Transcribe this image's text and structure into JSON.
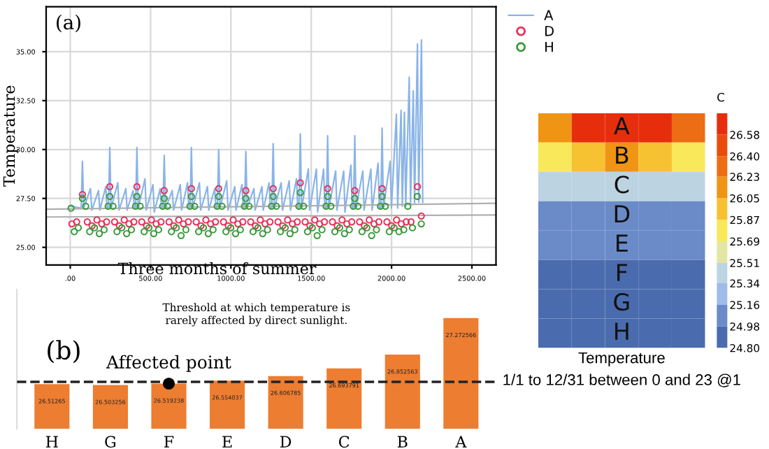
{
  "chart_data": [
    {
      "type": "line",
      "ylabel": "Temperature",
      "xlabel": "Three months of summer",
      "annotations": [
        "(a)"
      ],
      "xlim": [
        -150,
        2650
      ],
      "ylim": [
        24.1,
        37.3
      ],
      "xticks": [
        {
          "value": 0,
          "label": ".00"
        },
        {
          "value": 500,
          "label": "500.00"
        },
        {
          "value": 1000,
          "label": "1000.00"
        },
        {
          "value": 1500,
          "label": "1500.00"
        },
        {
          "value": 2000,
          "label": "2000.00"
        },
        {
          "value": 2500,
          "label": "2500.00"
        }
      ],
      "yticks": [
        {
          "value": 25,
          "label": "25.00"
        },
        {
          "value": 27.5,
          "label": "27.50"
        },
        {
          "value": 30,
          "label": "30.00"
        },
        {
          "value": 32.5,
          "label": "32.50"
        },
        {
          "value": 35,
          "label": "35.00"
        }
      ],
      "grid": true,
      "legend": "top right",
      "series": [
        {
          "name": "A",
          "type": "line",
          "color": "#8ab4e8",
          "x": [
            0,
            68,
            76,
            84,
            126,
            134,
            176,
            184,
            221,
            229,
            238,
            246,
            254,
            296,
            304,
            346,
            354,
            391,
            399,
            407,
            415,
            423,
            465,
            473,
            515,
            523,
            560,
            568,
            577,
            585,
            593,
            635,
            643,
            685,
            693,
            730,
            738,
            746,
            754,
            762,
            804,
            812,
            854,
            862,
            899,
            907,
            916,
            924,
            932,
            974,
            982,
            1024,
            1032,
            1069,
            1077,
            1085,
            1093,
            1101,
            1143,
            1151,
            1193,
            1201,
            1238,
            1246,
            1255,
            1263,
            1271,
            1313,
            1321,
            1363,
            1371,
            1408,
            1416,
            1424,
            1432,
            1440,
            1482,
            1490,
            1532,
            1540,
            1577,
            1585,
            1594,
            1602,
            1610,
            1652,
            1660,
            1702,
            1710,
            1747,
            1755,
            1763,
            1771,
            1779,
            1821,
            1829,
            1871,
            1879,
            1916,
            1924,
            1933,
            1941,
            1949,
            1991,
            1999,
            2030,
            2038,
            2059,
            2067,
            2080,
            2088,
            2110,
            2118,
            2135,
            2143,
            2161,
            2169,
            2186,
            2194
          ],
          "values": [
            27.1,
            27.0,
            29.4,
            27.0,
            28.0,
            26.9,
            27.9,
            26.9,
            28.1,
            27.0,
            27.0,
            30.1,
            27.0,
            28.3,
            26.9,
            28.0,
            26.9,
            27.9,
            27.0,
            27.0,
            30.1,
            27.0,
            28.5,
            26.9,
            28.2,
            26.8,
            28.0,
            27.0,
            27.0,
            29.7,
            27.0,
            27.9,
            26.9,
            28.2,
            26.9,
            28.3,
            27.0,
            27.0,
            30.1,
            27.0,
            28.3,
            26.9,
            28.1,
            26.9,
            28.0,
            27.0,
            27.0,
            30.0,
            27.0,
            28.4,
            26.9,
            28.1,
            26.9,
            28.2,
            27.0,
            27.0,
            29.9,
            27.0,
            28.0,
            26.9,
            28.1,
            26.9,
            28.3,
            27.0,
            27.0,
            30.3,
            27.0,
            28.3,
            26.9,
            28.4,
            26.9,
            28.5,
            27.0,
            27.0,
            30.8,
            27.0,
            29.0,
            26.9,
            29.0,
            26.8,
            29.0,
            27.0,
            27.0,
            30.7,
            27.0,
            28.9,
            26.9,
            28.9,
            26.8,
            29.2,
            27.0,
            27.0,
            30.7,
            27.0,
            28.9,
            26.9,
            29.0,
            26.9,
            29.3,
            27.0,
            27.0,
            31.1,
            27.0,
            29.4,
            27.0,
            31.8,
            27.0,
            32.0,
            27.1,
            31.9,
            27.1,
            33.7,
            27.2,
            33.0,
            27.2,
            35.4,
            27.3,
            35.6,
            27.3
          ]
        },
        {
          "name": "D",
          "type": "scatter",
          "color": "#e8305a",
          "marker": "circle",
          "x": [
            10,
            40,
            76,
            106,
            136,
            166,
            196,
            226,
            246,
            276,
            306,
            336,
            366,
            396,
            415,
            445,
            475,
            505,
            535,
            565,
            585,
            615,
            645,
            675,
            705,
            735,
            754,
            784,
            814,
            844,
            874,
            904,
            924,
            954,
            984,
            1014,
            1044,
            1074,
            1093,
            1123,
            1153,
            1183,
            1213,
            1243,
            1263,
            1293,
            1323,
            1353,
            1383,
            1413,
            1432,
            1462,
            1492,
            1522,
            1552,
            1582,
            1602,
            1632,
            1662,
            1692,
            1722,
            1752,
            1771,
            1801,
            1831,
            1861,
            1891,
            1921,
            1941,
            1971,
            2001,
            2031,
            2061,
            2091,
            2121,
            2161,
            2185
          ],
          "values": [
            26.2,
            26.3,
            27.7,
            26.3,
            26.1,
            26.4,
            26.2,
            26.3,
            28.1,
            26.3,
            26.1,
            26.4,
            26.2,
            26.3,
            28.1,
            26.3,
            26.1,
            26.4,
            26.2,
            26.3,
            27.9,
            26.3,
            26.1,
            26.4,
            26.2,
            26.3,
            28.0,
            26.3,
            26.1,
            26.4,
            26.2,
            26.3,
            28.0,
            26.3,
            26.1,
            26.4,
            26.2,
            26.3,
            27.9,
            26.3,
            26.1,
            26.4,
            26.2,
            26.3,
            28.0,
            26.3,
            26.1,
            26.4,
            26.2,
            26.3,
            28.3,
            26.3,
            26.1,
            26.4,
            26.2,
            26.3,
            28.0,
            26.3,
            26.1,
            26.4,
            26.2,
            26.3,
            27.9,
            26.3,
            26.1,
            26.4,
            26.2,
            26.3,
            28.0,
            26.3,
            26.1,
            26.4,
            26.2,
            26.3,
            26.3,
            28.1,
            26.6
          ]
        },
        {
          "name": "H",
          "type": "scatter",
          "color": "#3a9a3a",
          "marker": "circle",
          "x": [
            5,
            25,
            50,
            76,
            96,
            121,
            151,
            181,
            211,
            236,
            246,
            266,
            291,
            321,
            351,
            381,
            406,
            415,
            435,
            460,
            490,
            520,
            550,
            575,
            585,
            605,
            630,
            660,
            690,
            720,
            745,
            754,
            774,
            799,
            829,
            859,
            889,
            914,
            924,
            944,
            969,
            999,
            1029,
            1059,
            1084,
            1093,
            1113,
            1138,
            1168,
            1198,
            1228,
            1253,
            1263,
            1283,
            1308,
            1338,
            1368,
            1398,
            1423,
            1432,
            1452,
            1477,
            1507,
            1537,
            1567,
            1592,
            1602,
            1622,
            1647,
            1677,
            1707,
            1737,
            1762,
            1771,
            1791,
            1816,
            1846,
            1876,
            1906,
            1931,
            1941,
            1961,
            1986,
            2016,
            2046,
            2076,
            2101,
            2130,
            2160,
            2185
          ],
          "values": [
            27.0,
            25.8,
            26.0,
            27.5,
            27.1,
            25.8,
            26.0,
            25.7,
            25.9,
            27.1,
            27.6,
            27.1,
            25.8,
            26.0,
            25.7,
            25.9,
            27.1,
            27.6,
            27.1,
            25.8,
            26.0,
            25.7,
            25.9,
            27.1,
            27.5,
            27.1,
            25.8,
            26.0,
            25.6,
            25.9,
            27.1,
            27.6,
            27.1,
            25.8,
            26.0,
            25.7,
            25.9,
            27.1,
            27.6,
            27.1,
            25.8,
            26.0,
            25.7,
            25.9,
            27.1,
            27.5,
            27.1,
            25.8,
            26.0,
            25.7,
            25.9,
            27.1,
            27.6,
            27.1,
            25.8,
            26.0,
            25.7,
            25.9,
            27.1,
            27.8,
            27.1,
            25.8,
            26.0,
            25.6,
            25.9,
            27.1,
            27.6,
            27.1,
            25.8,
            26.0,
            25.7,
            25.9,
            27.1,
            27.5,
            27.1,
            25.8,
            26.0,
            25.6,
            25.9,
            27.1,
            27.6,
            27.1,
            25.8,
            26.0,
            25.8,
            25.9,
            27.1,
            26.0,
            27.6,
            26.2
          ]
        },
        {
          "type": "line",
          "color": "#b0b0b0",
          "x": [
            -150,
            2650
          ],
          "values": [
            26.95,
            27.25
          ]
        },
        {
          "type": "line",
          "color": "#b0b0b0",
          "x": [
            -150,
            2650
          ],
          "values": [
            26.55,
            26.65
          ]
        }
      ]
    },
    {
      "type": "bar",
      "categories": [
        "H",
        "G",
        "F",
        "E",
        "D",
        "C",
        "B",
        "A"
      ],
      "values": [
        26.51265,
        26.503256,
        26.519238,
        26.554037,
        26.606785,
        26.693791,
        26.852563,
        27.272566
      ],
      "color": "#ed7d31",
      "value_labels": [
        "26.51265",
        "26.503256",
        "26.519238",
        "26.554037",
        "26.606785",
        "26.693791",
        "26.852563",
        "27.272566"
      ],
      "ylim": [
        26.0,
        27.6
      ],
      "tick_labels": "x",
      "ref_lines": [
        {
          "axis": "y",
          "value": 26.54,
          "color": "#222222",
          "line_style": "dashed"
        }
      ],
      "annotations": [
        "(b)",
        "Threshold at which temperature is\nrarely affected by direct sunlight.",
        {
          "text": "Affected point",
          "x": "F",
          "y": 26.519238
        }
      ],
      "series": [
        {
          "type": "scatter",
          "x": [
            "F"
          ],
          "values": [
            26.519238
          ],
          "color": "#000000",
          "marker": "circle"
        }
      ]
    },
    {
      "type": "heatmap",
      "xlabel": "Temperature",
      "clabel": "C",
      "annotations": [
        "1/1 to 12/31 between 0 and 23 @1"
      ],
      "categories": [
        null,
        null,
        null,
        null,
        null
      ],
      "y_categories": [
        null,
        null,
        null,
        null,
        null,
        null,
        null,
        null
      ],
      "cells": [
        [
          26.15,
          26.65,
          26.65,
          26.65,
          26.3
        ],
        [
          25.78,
          25.95,
          26.1,
          25.95,
          25.78
        ],
        [
          25.42,
          25.45,
          25.45,
          25.45,
          25.45
        ],
        [
          25.07,
          25.07,
          25.07,
          25.07,
          25.12
        ],
        [
          25.0,
          25.0,
          25.0,
          25.0,
          25.0
        ],
        [
          24.95,
          24.95,
          24.95,
          24.95,
          24.95
        ],
        [
          24.9,
          24.9,
          24.9,
          24.9,
          24.9
        ],
        [
          24.85,
          24.85,
          24.85,
          24.85,
          24.85
        ]
      ],
      "cell_labels": [
        [
          null,
          null,
          "A",
          null,
          null
        ],
        [
          null,
          null,
          "B",
          null,
          null
        ],
        [
          null,
          null,
          "C",
          null,
          null
        ],
        [
          null,
          null,
          "D",
          null,
          null
        ],
        [
          null,
          null,
          "E",
          null,
          null
        ],
        [
          null,
          null,
          "F",
          null,
          null
        ],
        [
          null,
          null,
          "G",
          null,
          null
        ],
        [
          null,
          null,
          "H",
          null,
          null
        ]
      ],
      "clim": [
        24.8,
        26.76
      ],
      "cticks": [
        {
          "value": 24.8,
          "label": "24.80"
        },
        {
          "value": 24.98,
          "label": "24.98"
        },
        {
          "value": 25.16,
          "label": "25.16"
        },
        {
          "value": 25.34,
          "label": "25.34"
        },
        {
          "value": 25.51,
          "label": "25.51"
        },
        {
          "value": 25.69,
          "label": "25.69"
        },
        {
          "value": 25.87,
          "label": "25.87"
        },
        {
          "value": 26.05,
          "label": "26.05"
        },
        {
          "value": 26.23,
          "label": "26.23"
        },
        {
          "value": 26.4,
          "label": "26.40"
        },
        {
          "value": 26.58,
          "label": "26.58"
        }
      ],
      "colors": [
        "#4a6cae",
        "#6a8bc8",
        "#9fbbea",
        "#bcd4e2",
        "#e2e6a2",
        "#f8e85a",
        "#f6c231",
        "#ef9513",
        "#ec6d13",
        "#ea4c0e",
        "#e72e0c"
      ],
      "tick_labels": false
    }
  ]
}
